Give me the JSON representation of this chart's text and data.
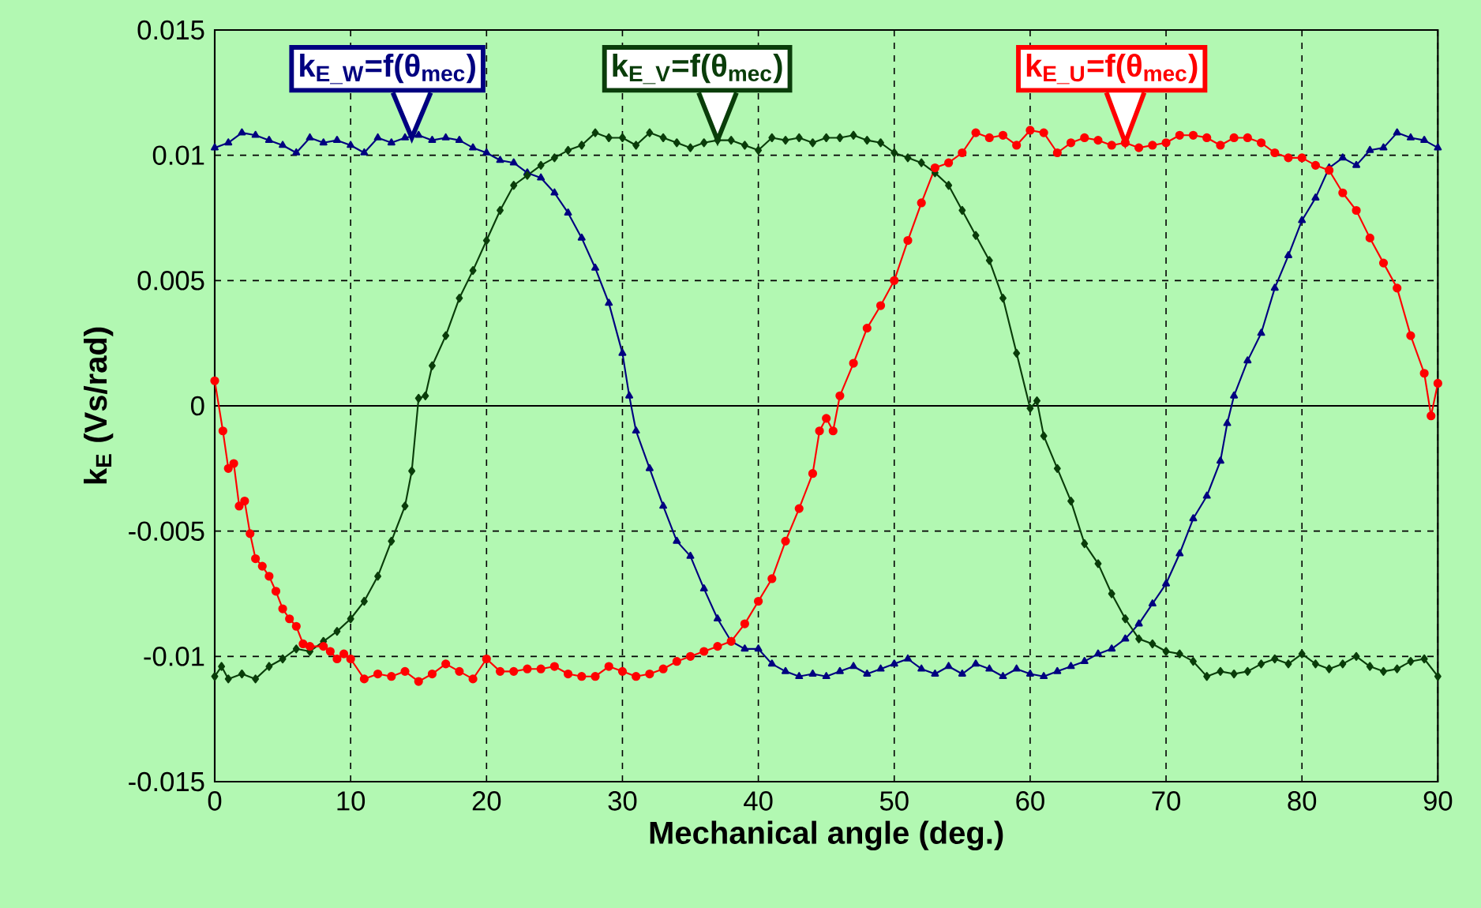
{
  "chart_data": {
    "type": "line",
    "xlabel": "Mechanical angle (deg.)",
    "ylabel": "k$_{E}$ (Vs/rad)",
    "xlim": [
      0,
      90
    ],
    "xticks": [
      0,
      10,
      20,
      30,
      40,
      50,
      60,
      70,
      80,
      90
    ],
    "ylim": [
      -0.015,
      0.015
    ],
    "yticks": [
      -0.015,
      -0.01,
      -0.005,
      0,
      0.005,
      0.01,
      0.015
    ],
    "grid": true,
    "line_style": "solid",
    "series": [
      {
        "name": "k$_{E_W}$=f(θ$_{mec}$)",
        "color": "#000080",
        "marker": "triangle",
        "x": [
          0,
          1,
          2,
          3,
          4,
          5,
          6,
          7,
          8,
          9,
          10,
          11,
          12,
          13,
          14,
          15,
          16,
          17,
          18,
          19,
          20,
          21,
          22,
          23,
          24,
          25,
          26,
          27,
          28,
          29,
          30,
          30.5,
          31,
          32,
          33,
          34,
          35,
          36,
          37,
          38,
          39,
          40,
          41,
          42,
          43,
          44,
          45,
          46,
          47,
          48,
          49,
          50,
          51,
          52,
          53,
          54,
          55,
          56,
          57,
          58,
          59,
          60,
          61,
          62,
          63,
          64,
          65,
          66,
          67,
          68,
          69,
          70,
          71,
          72,
          73,
          74,
          74.5,
          75,
          76,
          77,
          78,
          79,
          80,
          81,
          82,
          83,
          84,
          85,
          86,
          87,
          88,
          89,
          90
        ],
        "values": [
          0.0103,
          0.0105,
          0.0109,
          0.0108,
          0.0106,
          0.0104,
          0.0101,
          0.0107,
          0.0105,
          0.0106,
          0.0104,
          0.0101,
          0.0107,
          0.0105,
          0.0107,
          0.0108,
          0.0106,
          0.0107,
          0.0106,
          0.0103,
          0.0101,
          0.0098,
          0.0097,
          0.0093,
          0.0091,
          0.0085,
          0.0077,
          0.0067,
          0.0055,
          0.0041,
          0.0021,
          0.0004,
          -0.001,
          -0.0025,
          -0.004,
          -0.0054,
          -0.006,
          -0.0073,
          -0.0085,
          -0.0094,
          -0.0097,
          -0.0097,
          -0.0103,
          -0.0106,
          -0.0108,
          -0.0107,
          -0.0108,
          -0.0106,
          -0.0104,
          -0.0107,
          -0.0105,
          -0.0103,
          -0.0101,
          -0.0105,
          -0.0107,
          -0.0104,
          -0.0107,
          -0.0103,
          -0.0105,
          -0.0108,
          -0.0105,
          -0.0107,
          -0.0108,
          -0.0106,
          -0.0104,
          -0.0102,
          -0.0099,
          -0.0097,
          -0.0093,
          -0.0087,
          -0.0079,
          -0.0071,
          -0.0059,
          -0.0045,
          -0.0036,
          -0.0022,
          -0.0007,
          0.0004,
          0.0018,
          0.0029,
          0.0047,
          0.006,
          0.0074,
          0.0083,
          0.0095,
          0.0099,
          0.0096,
          0.0102,
          0.0103,
          0.0109,
          0.0107,
          0.0106,
          0.0103
        ]
      },
      {
        "name": "k$_{E_V}$=f(θ$_{mec}$)",
        "color": "#0a3d0a",
        "marker": "diamond",
        "x": [
          0,
          0.5,
          1,
          2,
          3,
          4,
          5,
          6,
          7,
          8,
          9,
          10,
          11,
          12,
          13,
          14,
          14.5,
          15,
          15.5,
          16,
          17,
          18,
          19,
          20,
          21,
          22,
          23,
          24,
          25,
          26,
          27,
          28,
          29,
          30,
          31,
          32,
          33,
          34,
          35,
          36,
          37,
          38,
          39,
          40,
          41,
          42,
          43,
          44,
          45,
          46,
          47,
          48,
          49,
          50,
          51,
          52,
          53,
          54,
          55,
          56,
          57,
          58,
          59,
          60,
          60.5,
          61,
          62,
          63,
          64,
          65,
          66,
          67,
          68,
          69,
          70,
          71,
          72,
          73,
          74,
          75,
          76,
          77,
          78,
          79,
          80,
          81,
          82,
          83,
          84,
          85,
          86,
          87,
          88,
          89,
          90
        ],
        "values": [
          -0.0108,
          -0.0104,
          -0.0109,
          -0.0107,
          -0.0109,
          -0.0104,
          -0.0101,
          -0.0097,
          -0.0098,
          -0.0094,
          -0.009,
          -0.0085,
          -0.0078,
          -0.0068,
          -0.0054,
          -0.004,
          -0.0026,
          0.0003,
          0.0004,
          0.0016,
          0.0028,
          0.0043,
          0.0054,
          0.0066,
          0.0078,
          0.0088,
          0.0092,
          0.0096,
          0.0099,
          0.0102,
          0.0104,
          0.0109,
          0.0107,
          0.0107,
          0.0104,
          0.0109,
          0.0107,
          0.0105,
          0.0103,
          0.0105,
          0.0106,
          0.0106,
          0.0104,
          0.0102,
          0.0107,
          0.0106,
          0.0107,
          0.0105,
          0.0107,
          0.0107,
          0.0108,
          0.0106,
          0.0105,
          0.0101,
          0.0099,
          0.0097,
          0.0093,
          0.0088,
          0.0078,
          0.0068,
          0.0058,
          0.0043,
          0.0021,
          -0.0001,
          0.0002,
          -0.0012,
          -0.0025,
          -0.0038,
          -0.0055,
          -0.0063,
          -0.0075,
          -0.0085,
          -0.0093,
          -0.0095,
          -0.0098,
          -0.0099,
          -0.0102,
          -0.0108,
          -0.0106,
          -0.0107,
          -0.0106,
          -0.0103,
          -0.0101,
          -0.0103,
          -0.0099,
          -0.0103,
          -0.0105,
          -0.0103,
          -0.01,
          -0.0104,
          -0.0106,
          -0.0105,
          -0.0102,
          -0.0101,
          -0.0108
        ]
      },
      {
        "name": "k$_{E_U}$=f(θ$_{mec}$)",
        "color": "#ff0000",
        "marker": "circle",
        "x": [
          0,
          0.6,
          1,
          1.4,
          1.8,
          2.2,
          2.6,
          3,
          3.5,
          4,
          4.5,
          5,
          5.5,
          6,
          6.5,
          7,
          8,
          8.5,
          9,
          9.5,
          10,
          11,
          12,
          13,
          14,
          15,
          16,
          17,
          18,
          19,
          20,
          21,
          22,
          23,
          24,
          25,
          26,
          27,
          28,
          29,
          30,
          31,
          32,
          33,
          34,
          35,
          36,
          37,
          38,
          39,
          40,
          41,
          42,
          43,
          44,
          44.5,
          45,
          45.5,
          46,
          47,
          48,
          49,
          50,
          51,
          52,
          53,
          54,
          55,
          56,
          57,
          58,
          59,
          60,
          61,
          62,
          63,
          64,
          65,
          66,
          67,
          68,
          69,
          70,
          71,
          72,
          73,
          74,
          75,
          76,
          77,
          78,
          79,
          80,
          81,
          82,
          83,
          84,
          85,
          86,
          87,
          88,
          89,
          89.5,
          90
        ],
        "values": [
          0.001,
          -0.001,
          -0.0025,
          -0.0023,
          -0.004,
          -0.0038,
          -0.0051,
          -0.0061,
          -0.0064,
          -0.0068,
          -0.0074,
          -0.0081,
          -0.0085,
          -0.0088,
          -0.0095,
          -0.0096,
          -0.0096,
          -0.0098,
          -0.0101,
          -0.0099,
          -0.0101,
          -0.0109,
          -0.0107,
          -0.0108,
          -0.0106,
          -0.011,
          -0.0107,
          -0.0103,
          -0.0106,
          -0.0109,
          -0.0101,
          -0.0106,
          -0.0106,
          -0.0105,
          -0.0105,
          -0.0104,
          -0.0107,
          -0.0108,
          -0.0108,
          -0.0104,
          -0.0106,
          -0.0108,
          -0.0107,
          -0.0105,
          -0.0102,
          -0.01,
          -0.0098,
          -0.0096,
          -0.0094,
          -0.0087,
          -0.0078,
          -0.0069,
          -0.0054,
          -0.0041,
          -0.0027,
          -0.001,
          -0.0005,
          -0.001,
          0.0004,
          0.0017,
          0.0031,
          0.004,
          0.005,
          0.0066,
          0.0081,
          0.0095,
          0.0097,
          0.0101,
          0.0109,
          0.0107,
          0.0108,
          0.0104,
          0.011,
          0.0109,
          0.0101,
          0.0105,
          0.0107,
          0.0106,
          0.0104,
          0.0105,
          0.0103,
          0.0104,
          0.0105,
          0.0108,
          0.0108,
          0.0107,
          0.0104,
          0.0107,
          0.0107,
          0.0105,
          0.0101,
          0.0099,
          0.0099,
          0.0096,
          0.0094,
          0.0085,
          0.0078,
          0.0067,
          0.0057,
          0.0047,
          0.0028,
          0.0013,
          -0.0004,
          0.0009
        ]
      }
    ]
  }
}
